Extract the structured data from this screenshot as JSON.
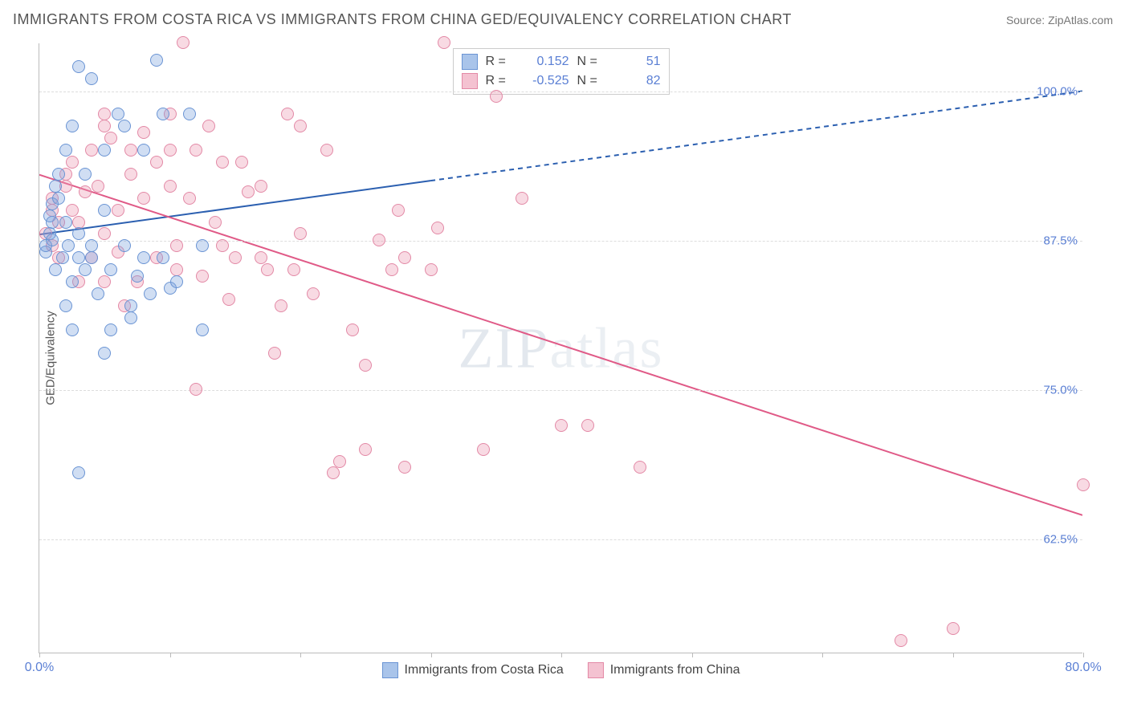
{
  "header": {
    "title": "IMMIGRANTS FROM COSTA RICA VS IMMIGRANTS FROM CHINA GED/EQUIVALENCY CORRELATION CHART",
    "source": "Source: ZipAtlas.com"
  },
  "chart": {
    "type": "scatter",
    "ylabel": "GED/Equivalency",
    "xlim": [
      0,
      80
    ],
    "ylim": [
      53,
      104
    ],
    "xtick_positions": [
      0,
      10,
      20,
      30,
      40,
      50,
      60,
      70,
      80
    ],
    "xtick_labels_shown": {
      "0": "0.0%",
      "80": "80.0%"
    },
    "ytick_positions": [
      62.5,
      75.0,
      87.5,
      100.0
    ],
    "ytick_labels": [
      "62.5%",
      "75.0%",
      "87.5%",
      "100.0%"
    ],
    "grid_color": "#dddddd",
    "background_color": "#ffffff",
    "axis_color": "#bbbbbb",
    "tick_label_color": "#5a7fd4",
    "marker_radius": 8,
    "marker_stroke_width": 1.5,
    "watermark": "ZIPatlas"
  },
  "series": {
    "costa_rica": {
      "label": "Immigrants from Costa Rica",
      "color_fill": "rgba(120, 160, 220, 0.35)",
      "color_stroke": "#6a94d4",
      "swatch_fill": "#a9c4ea",
      "swatch_stroke": "#6a94d4",
      "R": "0.152",
      "N": "51",
      "trend": {
        "x1": 0,
        "y1": 88.0,
        "x2_solid": 30,
        "y2_solid": 92.5,
        "x2": 80,
        "y2": 100.0,
        "stroke": "#2b5fb0",
        "stroke_width": 2
      },
      "points": [
        [
          0.5,
          86.5
        ],
        [
          0.5,
          87
        ],
        [
          0.8,
          88
        ],
        [
          0.8,
          89.5
        ],
        [
          1,
          90.5
        ],
        [
          1,
          87.5
        ],
        [
          1,
          89
        ],
        [
          1.2,
          92
        ],
        [
          1.2,
          85
        ],
        [
          1.5,
          91
        ],
        [
          1.5,
          93
        ],
        [
          1.8,
          86
        ],
        [
          2,
          95
        ],
        [
          2,
          89
        ],
        [
          2,
          82
        ],
        [
          2.2,
          87
        ],
        [
          2.5,
          97
        ],
        [
          2.5,
          84
        ],
        [
          2.5,
          80
        ],
        [
          3,
          102
        ],
        [
          3,
          88
        ],
        [
          3,
          86
        ],
        [
          3,
          68
        ],
        [
          3.5,
          93
        ],
        [
          3.5,
          85
        ],
        [
          4,
          101
        ],
        [
          4,
          87
        ],
        [
          4,
          86
        ],
        [
          4.5,
          83
        ],
        [
          5,
          95
        ],
        [
          5,
          90
        ],
        [
          5,
          78
        ],
        [
          5.5,
          85
        ],
        [
          5.5,
          80
        ],
        [
          6,
          98
        ],
        [
          6.5,
          97
        ],
        [
          6.5,
          87
        ],
        [
          7,
          82
        ],
        [
          7,
          81
        ],
        [
          7.5,
          84.5
        ],
        [
          8,
          95
        ],
        [
          8,
          86
        ],
        [
          8.5,
          83
        ],
        [
          9,
          102.5
        ],
        [
          9.5,
          98
        ],
        [
          9.5,
          86
        ],
        [
          10,
          83.5
        ],
        [
          10.5,
          84
        ],
        [
          11.5,
          98
        ],
        [
          12.5,
          87
        ],
        [
          12.5,
          80
        ]
      ]
    },
    "china": {
      "label": "Immigrants from China",
      "color_fill": "rgba(235, 150, 175, 0.35)",
      "color_stroke": "#e389a6",
      "swatch_fill": "#f4c2d1",
      "swatch_stroke": "#e389a6",
      "R": "-0.525",
      "N": "82",
      "trend": {
        "x1": 0,
        "y1": 93.0,
        "x2": 80,
        "y2": 64.5,
        "stroke": "#e05a87",
        "stroke_width": 2
      },
      "points": [
        [
          0.5,
          88
        ],
        [
          1,
          91
        ],
        [
          1,
          90
        ],
        [
          1,
          87
        ],
        [
          1.5,
          86
        ],
        [
          1.5,
          89
        ],
        [
          2,
          93
        ],
        [
          2,
          92
        ],
        [
          2.5,
          94
        ],
        [
          2.5,
          90
        ],
        [
          3,
          89
        ],
        [
          3,
          84
        ],
        [
          3.5,
          91.5
        ],
        [
          4,
          95
        ],
        [
          4,
          86
        ],
        [
          4.5,
          92
        ],
        [
          5,
          98
        ],
        [
          5,
          97
        ],
        [
          5,
          88
        ],
        [
          5,
          84
        ],
        [
          5.5,
          96
        ],
        [
          6,
          90
        ],
        [
          6,
          86.5
        ],
        [
          6.5,
          82
        ],
        [
          7,
          95
        ],
        [
          7,
          93
        ],
        [
          7.5,
          84
        ],
        [
          8,
          96.5
        ],
        [
          8,
          91
        ],
        [
          9,
          94
        ],
        [
          9,
          86
        ],
        [
          10,
          98
        ],
        [
          10,
          95
        ],
        [
          10,
          92
        ],
        [
          10.5,
          87
        ],
        [
          10.5,
          85
        ],
        [
          11,
          104
        ],
        [
          11.5,
          91
        ],
        [
          12,
          95
        ],
        [
          12,
          75
        ],
        [
          12.5,
          84.5
        ],
        [
          13,
          97
        ],
        [
          13.5,
          89
        ],
        [
          14,
          94
        ],
        [
          14,
          87
        ],
        [
          14.5,
          82.5
        ],
        [
          15,
          86
        ],
        [
          15.5,
          94
        ],
        [
          16,
          91.5
        ],
        [
          17,
          92
        ],
        [
          17,
          86
        ],
        [
          17.5,
          85
        ],
        [
          18,
          78
        ],
        [
          18.5,
          82
        ],
        [
          19,
          98
        ],
        [
          19.5,
          85
        ],
        [
          20,
          97
        ],
        [
          20,
          88
        ],
        [
          21,
          83
        ],
        [
          22,
          95
        ],
        [
          22.5,
          68
        ],
        [
          23,
          69
        ],
        [
          24,
          80
        ],
        [
          25,
          77
        ],
        [
          25,
          70
        ],
        [
          26,
          87.5
        ],
        [
          27,
          85
        ],
        [
          27.5,
          90
        ],
        [
          28,
          86
        ],
        [
          28,
          68.5
        ],
        [
          30,
          85
        ],
        [
          30.5,
          88.5
        ],
        [
          31,
          104
        ],
        [
          34,
          70
        ],
        [
          35,
          99.5
        ],
        [
          37,
          91
        ],
        [
          40,
          72
        ],
        [
          42,
          72
        ],
        [
          46,
          68.5
        ],
        [
          66,
          54
        ],
        [
          70,
          55
        ],
        [
          80,
          67
        ]
      ]
    }
  },
  "stats_legend": {
    "r_label": "R =",
    "n_label": "N ="
  }
}
